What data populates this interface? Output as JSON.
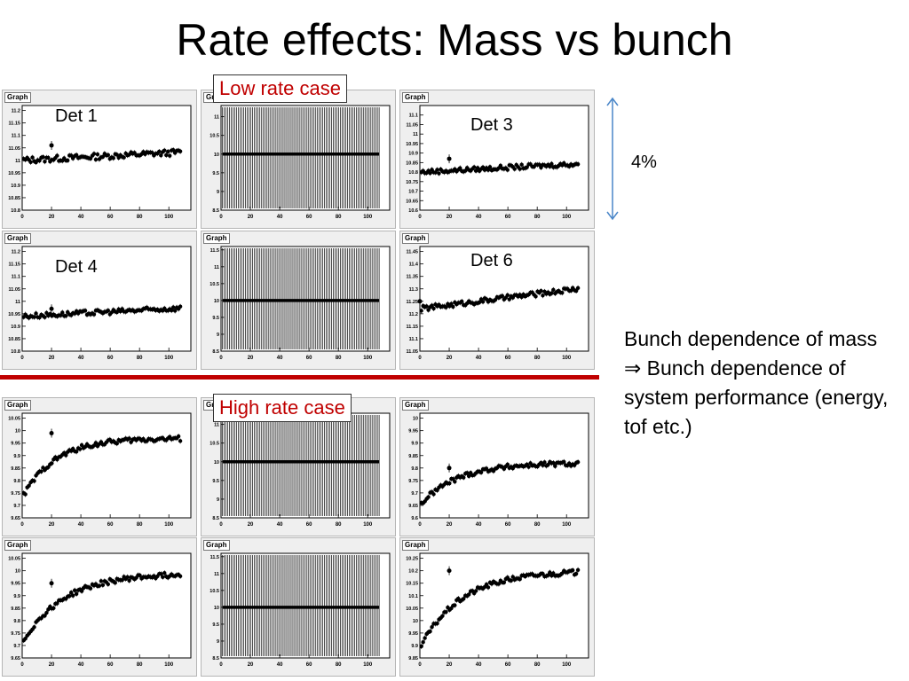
{
  "slide": {
    "title": "Rate effects: Mass vs bunch",
    "low_rate_label": "Low rate case",
    "high_rate_label": "High rate case",
    "span_label": "4%",
    "note": "Bunch dependence of mass ⇒ Bunch dependence of system performance (energy, tof etc.)"
  },
  "colors": {
    "divider": "#c00000",
    "arrow": "#4a86c8",
    "callout_text": "#c00000"
  },
  "chart_data": [
    {
      "type": "scatter",
      "panel_label": "Graph",
      "det_label": "Det 1",
      "xlim": [
        0,
        115
      ],
      "ylim": [
        10.8,
        11.22
      ],
      "xticks": [
        0,
        20,
        40,
        60,
        80,
        100
      ],
      "yticks": [
        10.8,
        10.85,
        10.9,
        10.95,
        11,
        11.05,
        11.1,
        11.15,
        11.2
      ],
      "shape": "flat",
      "base": 11.0,
      "slope": 0.0003,
      "outlier": [
        20,
        11.06
      ],
      "noise": 0.012
    },
    {
      "type": "scatter",
      "panel_label": "Graph",
      "det_label": "",
      "xlim": [
        0,
        115
      ],
      "ylim": [
        8.5,
        11.3
      ],
      "xticks": [
        0,
        20,
        40,
        60,
        80,
        100
      ],
      "yticks": [
        8.5,
        9,
        9.5,
        10,
        10.5,
        11
      ],
      "shape": "bars",
      "base": 10.0
    },
    {
      "type": "scatter",
      "panel_label": "Graph",
      "det_label": "Det 3",
      "xlim": [
        0,
        115
      ],
      "ylim": [
        10.6,
        11.15
      ],
      "xticks": [
        0,
        20,
        40,
        60,
        80,
        100
      ],
      "yticks": [
        10.6,
        10.65,
        10.7,
        10.75,
        10.8,
        10.85,
        10.9,
        10.95,
        11,
        11.05,
        11.1
      ],
      "shape": "flat",
      "base": 10.8,
      "slope": 0.0004,
      "outlier": [
        20,
        10.87
      ],
      "noise": 0.012
    },
    {
      "type": "scatter",
      "panel_label": "Graph",
      "det_label": "Det 4",
      "xlim": [
        0,
        115
      ],
      "ylim": [
        10.8,
        11.22
      ],
      "xticks": [
        0,
        20,
        40,
        60,
        80,
        100
      ],
      "yticks": [
        10.8,
        10.85,
        10.9,
        10.95,
        11,
        11.05,
        11.1,
        11.15,
        11.2
      ],
      "shape": "flat",
      "base": 10.94,
      "slope": 0.0003,
      "outlier": [
        20,
        10.97
      ],
      "noise": 0.01
    },
    {
      "type": "scatter",
      "panel_label": "Graph",
      "det_label": "",
      "xlim": [
        0,
        115
      ],
      "ylim": [
        8.5,
        11.6
      ],
      "xticks": [
        0,
        20,
        40,
        60,
        80,
        100
      ],
      "yticks": [
        8.5,
        9,
        9.5,
        10,
        10.5,
        11,
        11.5
      ],
      "shape": "bars",
      "base": 10.0
    },
    {
      "type": "scatter",
      "panel_label": "Graph",
      "det_label": "Det 6",
      "xlim": [
        0,
        115
      ],
      "ylim": [
        11.05,
        11.47
      ],
      "xticks": [
        0,
        20,
        40,
        60,
        80,
        100
      ],
      "yticks": [
        11.05,
        11.1,
        11.15,
        11.2,
        11.25,
        11.3,
        11.35,
        11.4,
        11.45
      ],
      "shape": "flat",
      "base": 11.22,
      "slope": 0.00075,
      "outlier": [
        0,
        11.25
      ],
      "noise": 0.01
    },
    {
      "type": "scatter",
      "panel_label": "Graph",
      "det_label": "",
      "xlim": [
        0,
        115
      ],
      "ylim": [
        9.65,
        10.07
      ],
      "xticks": [
        0,
        20,
        40,
        60,
        80,
        100
      ],
      "yticks": [
        9.65,
        9.7,
        9.75,
        9.8,
        9.85,
        9.9,
        9.95,
        10,
        10.05
      ],
      "shape": "rise",
      "start": 9.73,
      "end": 9.97,
      "tau": 22,
      "outlier": [
        20,
        9.99
      ],
      "noise": 0.01
    },
    {
      "type": "scatter",
      "panel_label": "Graph",
      "det_label": "",
      "xlim": [
        0,
        115
      ],
      "ylim": [
        8.5,
        11.3
      ],
      "xticks": [
        0,
        20,
        40,
        60,
        80,
        100
      ],
      "yticks": [
        8.5,
        9,
        9.5,
        10,
        10.5,
        11
      ],
      "shape": "bars",
      "base": 10.0
    },
    {
      "type": "scatter",
      "panel_label": "Graph",
      "det_label": "",
      "xlim": [
        0,
        115
      ],
      "ylim": [
        9.6,
        10.02
      ],
      "xticks": [
        0,
        20,
        40,
        60,
        80,
        100
      ],
      "yticks": [
        9.6,
        9.65,
        9.7,
        9.75,
        9.8,
        9.85,
        9.9,
        9.95,
        10
      ],
      "shape": "rise",
      "start": 9.65,
      "end": 9.82,
      "tau": 25,
      "outlier": [
        20,
        9.8
      ],
      "noise": 0.01
    },
    {
      "type": "scatter",
      "panel_label": "Graph",
      "det_label": "",
      "xlim": [
        0,
        115
      ],
      "ylim": [
        9.65,
        10.07
      ],
      "xticks": [
        0,
        20,
        40,
        60,
        80,
        100
      ],
      "yticks": [
        9.65,
        9.7,
        9.75,
        9.8,
        9.85,
        9.9,
        9.95,
        10,
        10.05
      ],
      "shape": "rise",
      "start": 9.71,
      "end": 9.99,
      "tau": 28,
      "outlier": [
        20,
        9.95
      ],
      "noise": 0.01
    },
    {
      "type": "scatter",
      "panel_label": "Graph",
      "det_label": "",
      "xlim": [
        0,
        115
      ],
      "ylim": [
        8.5,
        11.6
      ],
      "xticks": [
        0,
        20,
        40,
        60,
        80,
        100
      ],
      "yticks": [
        8.5,
        9,
        9.5,
        10,
        10.5,
        11,
        11.5
      ],
      "shape": "bars",
      "base": 10.0
    },
    {
      "type": "scatter",
      "panel_label": "Graph",
      "det_label": "",
      "xlim": [
        0,
        115
      ],
      "ylim": [
        9.85,
        10.27
      ],
      "xticks": [
        0,
        20,
        40,
        60,
        80,
        100
      ],
      "yticks": [
        9.85,
        9.9,
        9.95,
        10,
        10.05,
        10.1,
        10.15,
        10.2,
        10.25
      ],
      "shape": "rise",
      "start": 9.89,
      "end": 10.2,
      "tau": 28,
      "outlier": [
        20,
        10.2
      ],
      "noise": 0.01
    }
  ]
}
